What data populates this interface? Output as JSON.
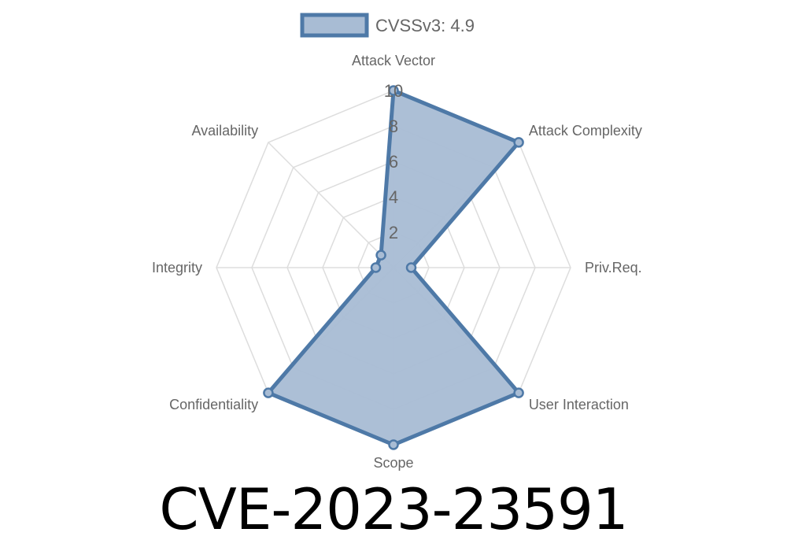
{
  "chart_data": {
    "type": "radar",
    "axes": [
      "Attack Vector",
      "Attack Complexity",
      "Priv.Req.",
      "User Interaction",
      "Scope",
      "Confidentiality",
      "Integrity",
      "Availability"
    ],
    "series": [
      {
        "name": "CVSSv3: 4.9",
        "values": [
          10,
          10,
          1,
          10,
          10,
          10,
          1,
          1
        ]
      }
    ],
    "rlim": [
      0,
      10
    ],
    "ticks": [
      "2",
      "4",
      "6",
      "8",
      "10"
    ],
    "grid": true,
    "legend_placement": "top",
    "colors": {
      "line": "#4e79a7",
      "fill": "#a8bcd4",
      "grid": "#dddddd"
    }
  },
  "title": "CVE-2023-23591"
}
